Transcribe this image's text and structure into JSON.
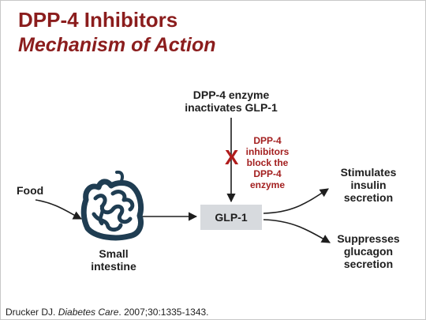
{
  "title": "DPP-4 Inhibitors",
  "subtitle": "Mechanism of Action",
  "nodes": {
    "food": "Food",
    "small_intestine_line1": "Small",
    "small_intestine_line2": "intestine",
    "glp1": "GLP-1",
    "enzyme_line1": "DPP-4 enzyme",
    "enzyme_line2": "inactivates GLP-1",
    "inhibitor_line1": "DPP-4",
    "inhibitor_line2": "inhibitors",
    "inhibitor_line3": "block the",
    "inhibitor_line4": "DPP-4",
    "inhibitor_line5": "enzyme",
    "block_mark": "X",
    "stimulates_line1": "Stimulates",
    "stimulates_line2": "insulin",
    "stimulates_line3": "secretion",
    "suppresses_line1": "Suppresses",
    "suppresses_line2": "glucagon",
    "suppresses_line3": "secretion"
  },
  "citation": {
    "authors": "Drucker DJ. ",
    "journal": "Diabetes Care",
    "details": ". 2007;30:1335-1343."
  },
  "colors": {
    "title": "#8b1d1d",
    "inhibitor_text": "#a31f1f",
    "intestine": "#1f3d52",
    "glp_box": "#d7dade",
    "arrows": "#1e1e1e"
  },
  "icons": {
    "intestine": "intestine-icon"
  }
}
